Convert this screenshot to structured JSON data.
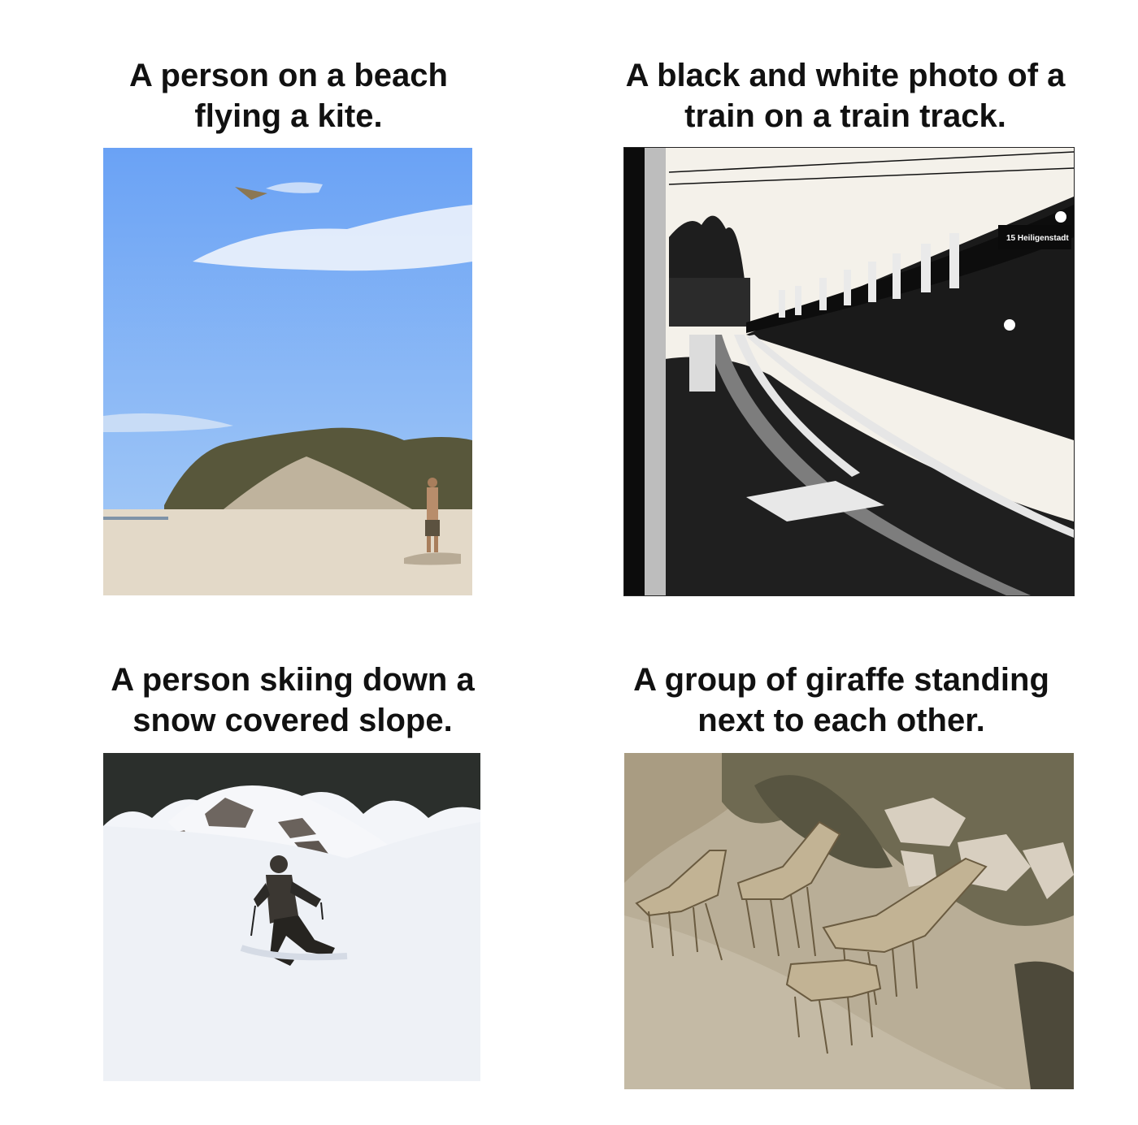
{
  "panels": [
    {
      "caption": "A person on a beach flying a kite.",
      "photo_icon": "beach-kite-photo",
      "colors": {
        "sky_top": "#6aa2f5",
        "sky_bottom": "#a9cdf6",
        "sand": "#e3d9c8",
        "dune": "#58573b"
      }
    },
    {
      "caption": "A black and white photo of a train on a train track.",
      "photo_icon": "train-track-photo",
      "train_sign": "15 Heiligenstadt",
      "colors": {
        "sky": "#f4f1ea",
        "dark": "#111111"
      }
    },
    {
      "caption": "A person skiing down a snow covered slope.",
      "photo_icon": "skier-photo",
      "colors": {
        "snow": "#f3f5f9",
        "trees": "#2b2f2c",
        "skier": "#2c2a27"
      }
    },
    {
      "caption": "A group of giraffe standing next to each other.",
      "photo_icon": "giraffes-photo",
      "colors": {
        "ground": "#b9ae97",
        "grass": "#6f6a52",
        "rocks": "#d8cfc0",
        "giraffe": "#c2b394"
      }
    }
  ]
}
